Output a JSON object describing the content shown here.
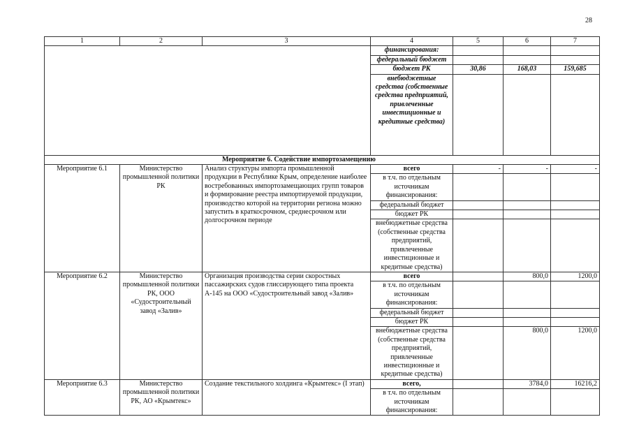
{
  "page_number": "28",
  "header": [
    "1",
    "2",
    "3",
    "4",
    "5",
    "6",
    "7"
  ],
  "continuation": {
    "rows": [
      {
        "label": "финансирования:",
        "v5": "",
        "v6": "",
        "v7": ""
      },
      {
        "label": "федеральный бюджет",
        "v5": "",
        "v6": "",
        "v7": ""
      },
      {
        "label": "бюджет РК",
        "v5": "30,86",
        "v6": "168,03",
        "v7": "159,685"
      },
      {
        "label": "внебюджетные средства (собственные средства предприятий, привлеченные инвестиционные и кредитные средства)",
        "v5": "",
        "v6": "",
        "v7": ""
      }
    ]
  },
  "section_title": "Мероприятие 6. Содействие импортозамещению",
  "measures": [
    {
      "id": "Мероприятие 6.1",
      "executor": "Министерство промышленной политики РК",
      "description": "Анализ структуры импорта промышленной продукции в Республике Крым, определение наиболее востребованных импортозамещающих групп товаров и формирование реестра импортируемой продукции, производство которой на территории региона можно запустить в краткосрочном, среднесрочном или долгосрочном периоде",
      "rows": [
        {
          "label": "всего",
          "v5": "-",
          "v6": "-",
          "v7": "-"
        },
        {
          "label": "в т.ч. по отдельным источникам финансирования:",
          "v5": "",
          "v6": "",
          "v7": ""
        },
        {
          "label": "федеральный бюджет",
          "v5": "",
          "v6": "",
          "v7": ""
        },
        {
          "label": "бюджет РК",
          "v5": "",
          "v6": "",
          "v7": ""
        },
        {
          "label": "внебюджетные средства (собственные средства предприятий, привлеченные инвестиционные и кредитные средства)",
          "v5": "",
          "v6": "",
          "v7": ""
        }
      ]
    },
    {
      "id": "Мероприятие 6.2",
      "executor": "Министерство промышленной политики РК, ООО «Судостроительный завод «Залив»",
      "description": "Организация производства серии скоростных пассажирских судов глиссирующего типа проекта А-145 на ООО «Судостроительный завод «Залив»",
      "rows": [
        {
          "label": "всего",
          "v5": "",
          "v6": "800,0",
          "v7": "1200,0"
        },
        {
          "label": "в т.ч. по отдельным источникам финансирования:",
          "v5": "",
          "v6": "",
          "v7": ""
        },
        {
          "label": "федеральный бюджет",
          "v5": "",
          "v6": "",
          "v7": ""
        },
        {
          "label": "бюджет РК",
          "v5": "",
          "v6": "",
          "v7": ""
        },
        {
          "label": "внебюджетные средства (собственные средства предприятий, привлеченные инвестиционные и кредитные средства)",
          "v5": "",
          "v6": "800,0",
          "v7": "1200,0"
        }
      ]
    },
    {
      "id": "Мероприятие 6.3",
      "executor": "Министерство промышленной политики РК, АО «Крымтекс»",
      "description": "Создание текстильного холдинга «Крымтекс» (I этап)",
      "rows": [
        {
          "label": "всего,",
          "v5": "",
          "v6": "3784,0",
          "v7": "16216,2"
        },
        {
          "label": "в т.ч. по отдельным источникам финансирования:",
          "v5": "",
          "v6": "",
          "v7": ""
        }
      ]
    }
  ]
}
